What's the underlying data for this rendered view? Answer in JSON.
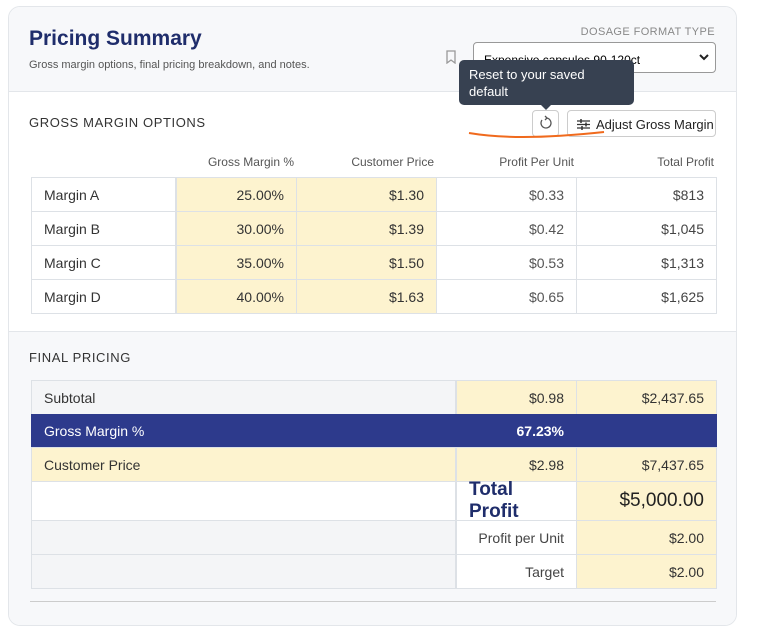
{
  "header": {
    "title": "Pricing Summary",
    "subtitle": "Gross margin options, final pricing breakdown, and notes."
  },
  "dosage_format": {
    "label": "DOSAGE FORMAT TYPE",
    "selected": "Expensive capsules 90-120ct"
  },
  "tooltip": {
    "text": "Reset to your saved default"
  },
  "gross_margin_options": {
    "title": "GROSS MARGIN OPTIONS",
    "adjust_button": "Adjust Gross Margin",
    "columns": [
      "Gross Margin %",
      "Customer Price",
      "Profit Per Unit",
      "Total Profit"
    ],
    "rows": [
      {
        "label": "Margin A",
        "values": [
          "25.00%",
          "$1.30",
          "$0.33",
          "$813"
        ]
      },
      {
        "label": "Margin B",
        "values": [
          "30.00%",
          "$1.39",
          "$0.42",
          "$1,045"
        ]
      },
      {
        "label": "Margin C",
        "values": [
          "35.00%",
          "$1.50",
          "$0.53",
          "$1,313"
        ]
      },
      {
        "label": "Margin D",
        "values": [
          "40.00%",
          "$1.63",
          "$0.65",
          "$1,625"
        ]
      }
    ]
  },
  "final_pricing": {
    "title": "FINAL PRICING",
    "rows": [
      {
        "label": "Subtotal",
        "values": [
          "$0.98",
          "$2,437.65"
        ]
      },
      {
        "label": "Gross Margin %",
        "values": [
          "67.23%"
        ]
      },
      {
        "label": "Customer Price",
        "values": [
          "$2.98",
          "$7,437.65"
        ]
      },
      {
        "label": "Total Profit",
        "values": [
          "$5,000.00"
        ]
      },
      {
        "label": "Profit per Unit",
        "values": [
          "$2.00"
        ]
      },
      {
        "label": "Target",
        "values": [
          "$2.00"
        ]
      }
    ]
  }
}
